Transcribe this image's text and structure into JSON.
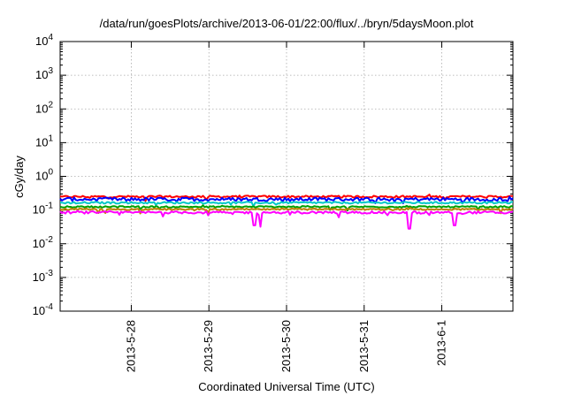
{
  "chart_data": {
    "type": "line",
    "title": "/data/run/goesPlots/archive/2013-06-01/22:00/flux/../bryn/5daysMoon.plot",
    "xlabel": "Coordinated Universal Time (UTC)",
    "ylabel": "cGy/day",
    "yscale": "log",
    "ylim": [
      0.0001,
      10000
    ],
    "xlim": [
      "2013-05-27 02:00",
      "2013-06-01 22:00"
    ],
    "grid": true,
    "y_ticks": [
      {
        "base": "10",
        "exp": "-4"
      },
      {
        "base": "10",
        "exp": "-3"
      },
      {
        "base": "10",
        "exp": "-2"
      },
      {
        "base": "10",
        "exp": "-1"
      },
      {
        "base": "10",
        "exp": "0"
      },
      {
        "base": "10",
        "exp": "1"
      },
      {
        "base": "10",
        "exp": "2"
      },
      {
        "base": "10",
        "exp": "3"
      },
      {
        "base": "10",
        "exp": "4"
      }
    ],
    "x_ticks": [
      "2013-5-28",
      "2013-5-29",
      "2013-5-30",
      "2013-5-31",
      "2013-6-1"
    ],
    "x_tick_dates": [
      "2013-05-28 00:00",
      "2013-05-29 00:00",
      "2013-05-30 00:00",
      "2013-05-31 00:00",
      "2013-06-01 00:00"
    ],
    "series": [
      {
        "color": "#ff0000",
        "level": 0.25,
        "jitter": 0.07,
        "dips": []
      },
      {
        "color": "#0000ff",
        "level": 0.21,
        "jitter": 0.12,
        "dips": []
      },
      {
        "color": "#00c8c8",
        "level": 0.165,
        "jitter": 0.06,
        "dips": []
      },
      {
        "color": "#00a000",
        "level": 0.125,
        "jitter": 0.05,
        "dips": []
      },
      {
        "color": "#c08000",
        "level": 0.105,
        "jitter": 0.05,
        "dips": []
      },
      {
        "color": "#ff00ff",
        "level": 0.085,
        "jitter": 0.08,
        "dips": [
          {
            "t": "2013-05-29 14:00",
            "v": 0.035
          },
          {
            "t": "2013-05-29 16:00",
            "v": 0.032
          },
          {
            "t": "2013-05-31 14:00",
            "v": 0.028
          },
          {
            "t": "2013-06-01 04:00",
            "v": 0.035
          }
        ]
      }
    ]
  }
}
